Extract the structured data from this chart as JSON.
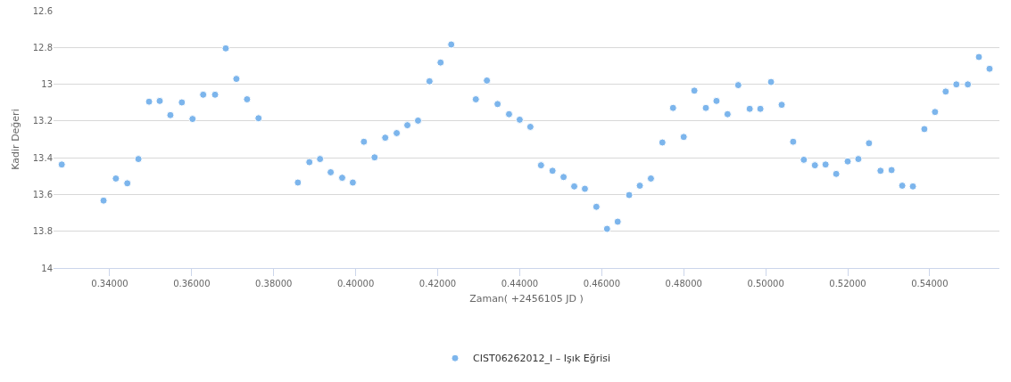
{
  "chart_data": {
    "type": "scatter",
    "xlabel": "Zaman( +2456105 JD )",
    "ylabel": "Kadir Değeri",
    "x": [
      0.3283,
      0.3385,
      0.3415,
      0.3443,
      0.347,
      0.3496,
      0.3522,
      0.3548,
      0.3576,
      0.3602,
      0.3628,
      0.3657,
      0.3683,
      0.3709,
      0.3735,
      0.3763,
      0.3859,
      0.3887,
      0.3913,
      0.3939,
      0.3967,
      0.3993,
      0.402,
      0.4046,
      0.4072,
      0.41,
      0.4126,
      0.4152,
      0.418,
      0.4207,
      0.4233,
      0.4293,
      0.432,
      0.4346,
      0.4374,
      0.44,
      0.4426,
      0.4452,
      0.448,
      0.4507,
      0.4533,
      0.4559,
      0.4587,
      0.4613,
      0.4639,
      0.4667,
      0.4693,
      0.472,
      0.4748,
      0.4774,
      0.48,
      0.4826,
      0.4854,
      0.488,
      0.4907,
      0.4933,
      0.4961,
      0.4987,
      0.5013,
      0.5039,
      0.5067,
      0.5093,
      0.512,
      0.5146,
      0.5172,
      0.52,
      0.5226,
      0.5252,
      0.528,
      0.5307,
      0.5333,
      0.5359,
      0.5387,
      0.5413,
      0.5439,
      0.5465,
      0.5493,
      0.552,
      0.5546
    ],
    "series": [
      {
        "name": "CIST06262012_I – Işık Eğrisi",
        "color": "#7cb5ec",
        "values": [
          13.437,
          13.633,
          13.513,
          13.539,
          13.407,
          13.095,
          13.091,
          13.168,
          13.099,
          13.189,
          13.057,
          13.057,
          12.805,
          12.971,
          13.082,
          13.185,
          13.535,
          13.424,
          13.407,
          13.479,
          13.509,
          13.535,
          13.313,
          13.398,
          13.291,
          13.266,
          13.223,
          13.198,
          12.984,
          12.882,
          12.784,
          13.082,
          12.98,
          13.108,
          13.163,
          13.193,
          13.232,
          13.441,
          13.471,
          13.505,
          13.556,
          13.569,
          13.667,
          13.787,
          13.748,
          13.603,
          13.552,
          13.513,
          13.317,
          13.129,
          13.287,
          13.035,
          13.129,
          13.091,
          13.163,
          13.005,
          13.134,
          13.134,
          12.988,
          13.112,
          13.313,
          13.411,
          13.441,
          13.437,
          13.488,
          13.42,
          13.407,
          13.321,
          13.471,
          13.467,
          13.552,
          13.556,
          13.244,
          13.151,
          13.04,
          13.001,
          13.001,
          12.852,
          12.916
        ]
      }
    ],
    "xlim": [
      0.3263,
      0.557
    ],
    "xticks": [
      {
        "value": 0.34,
        "label": "0.34000"
      },
      {
        "value": 0.36,
        "label": "0.36000"
      },
      {
        "value": 0.38,
        "label": "0.38000"
      },
      {
        "value": 0.4,
        "label": "0.40000"
      },
      {
        "value": 0.42,
        "label": "0.42000"
      },
      {
        "value": 0.44,
        "label": "0.44000"
      },
      {
        "value": 0.46,
        "label": "0.46000"
      },
      {
        "value": 0.48,
        "label": "0.48000"
      },
      {
        "value": 0.5,
        "label": "0.50000"
      },
      {
        "value": 0.52,
        "label": "0.52000"
      },
      {
        "value": 0.54,
        "label": "0.54000"
      }
    ],
    "ylim": [
      14,
      12.6
    ],
    "yticks": [
      12.6,
      12.8,
      13,
      13.2,
      13.4,
      13.6,
      13.8,
      14
    ],
    "grid": "y",
    "legend": "bottom",
    "marker": "circle"
  }
}
